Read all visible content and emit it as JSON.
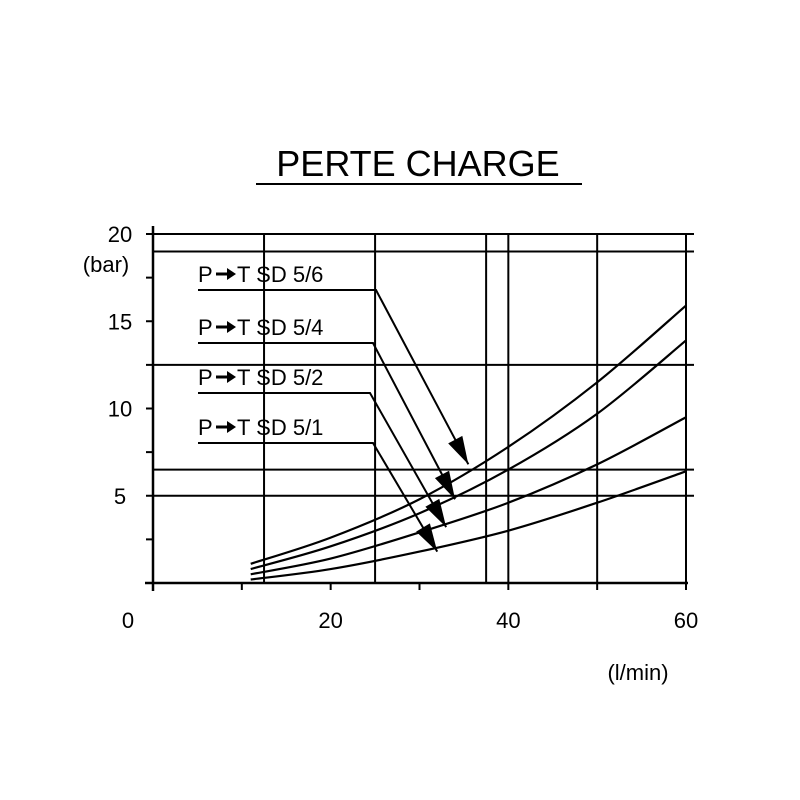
{
  "chart_data": {
    "type": "line",
    "title": "PERTE CHARGE",
    "ylabel": "(bar)",
    "xlabel": "(l/min)",
    "xlim": [
      0,
      60
    ],
    "ylim": [
      0,
      20
    ],
    "x_ticks": [
      {
        "value": 0,
        "label": "0"
      },
      {
        "value": 20,
        "label": "20"
      },
      {
        "value": 40,
        "label": "40"
      },
      {
        "value": 60,
        "label": "60"
      }
    ],
    "y_ticks": [
      {
        "value": 20,
        "label": "20"
      },
      {
        "value": 15,
        "label": "15"
      },
      {
        "value": 10,
        "label": "10"
      },
      {
        "value": 5,
        "label": "5"
      }
    ],
    "x_grid": [
      12.5,
      25,
      37.5,
      40,
      50
    ],
    "y_grid": [
      19,
      12.5,
      6.5,
      5
    ],
    "series": [
      {
        "name": "P-T SD 5/6",
        "x": [
          11,
          20,
          30,
          40,
          50,
          60
        ],
        "y": [
          1.1,
          2.6,
          4.8,
          7.8,
          11.5,
          15.9
        ]
      },
      {
        "name": "P-T SD 5/4",
        "x": [
          11,
          20,
          30,
          40,
          50,
          60
        ],
        "y": [
          0.8,
          2.1,
          4.0,
          6.5,
          9.7,
          13.9
        ]
      },
      {
        "name": "P-T SD 5/2",
        "x": [
          11,
          20,
          30,
          40,
          50,
          60
        ],
        "y": [
          0.5,
          1.4,
          2.9,
          4.6,
          6.8,
          9.5
        ]
      },
      {
        "name": "P-T SD 5/1",
        "x": [
          11,
          20,
          30,
          40,
          50,
          60
        ],
        "y": [
          0.2,
          0.8,
          1.8,
          3.0,
          4.6,
          6.4
        ]
      }
    ],
    "annotations": [
      {
        "series": "P-T SD 5/6",
        "pre": "P",
        "post": "T SD 5/6",
        "arrow_to": [
          35.5,
          6.8
        ]
      },
      {
        "series": "P-T SD 5/4",
        "pre": "P",
        "post": "T SD 5/4",
        "arrow_to": [
          34,
          4.8
        ]
      },
      {
        "series": "P-T SD 5/2",
        "pre": "P",
        "post": "T SD 5/2",
        "arrow_to": [
          33,
          3.2
        ]
      },
      {
        "series": "P-T SD 5/1",
        "pre": "P",
        "post": "T SD 5/1",
        "arrow_to": [
          32,
          1.8
        ]
      }
    ],
    "grid": true,
    "legend": "none"
  }
}
